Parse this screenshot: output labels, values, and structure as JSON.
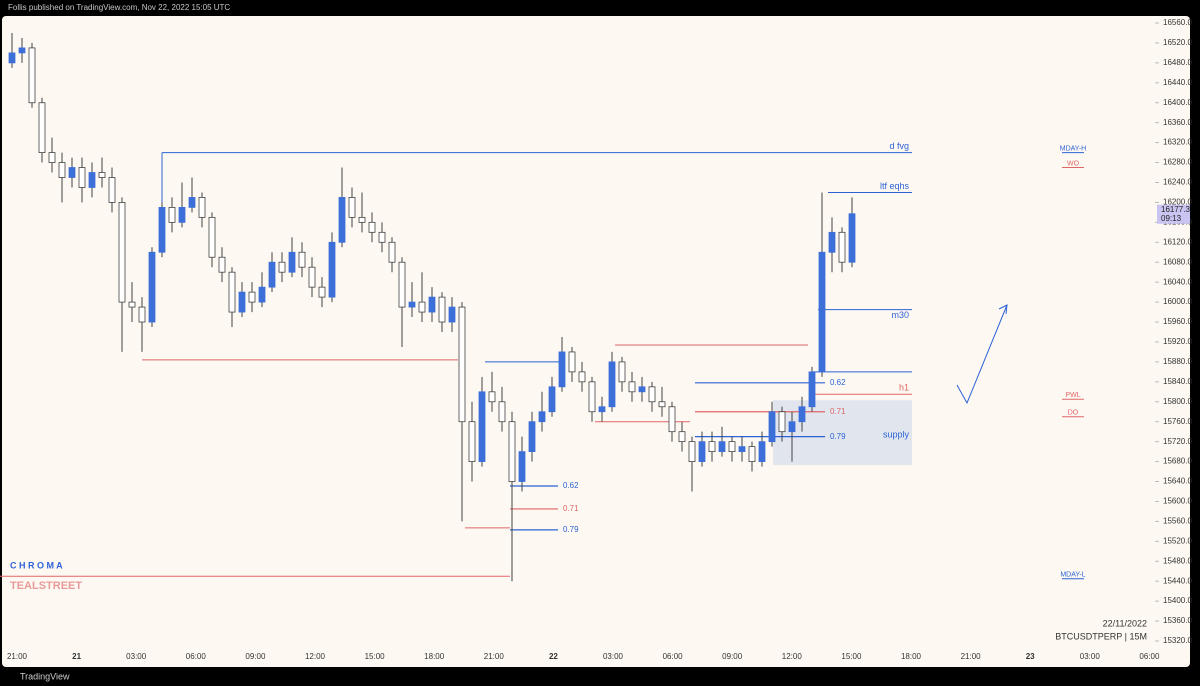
{
  "header": "Follis published on TradingView.com, Nov 22, 2022 15:05 UTC",
  "footer": "TradingView",
  "chart_data": {
    "type": "candlestick",
    "symbol": "BTCUSDTPERP | 15M",
    "date": "22/11/2022",
    "watermark_top": "C H R O M A",
    "watermark_bottom": "TEALSTREET",
    "up_color": "#3d6fd9",
    "down_color": "#ffffff",
    "candles": [
      [
        16480,
        16540,
        16470,
        16500
      ],
      [
        16500,
        16530,
        16480,
        16510
      ],
      [
        16510,
        16520,
        16390,
        16400
      ],
      [
        16400,
        16410,
        16280,
        16300
      ],
      [
        16300,
        16330,
        16260,
        16280
      ],
      [
        16280,
        16300,
        16200,
        16250
      ],
      [
        16250,
        16290,
        16230,
        16270
      ],
      [
        16270,
        16290,
        16200,
        16230
      ],
      [
        16230,
        16280,
        16210,
        16260
      ],
      [
        16260,
        16290,
        16230,
        16250
      ],
      [
        16250,
        16270,
        16180,
        16200
      ],
      [
        16200,
        16210,
        15900,
        16000
      ],
      [
        16000,
        16040,
        15960,
        15990
      ],
      [
        15990,
        16010,
        15900,
        15960
      ],
      [
        15960,
        16110,
        15950,
        16100
      ],
      [
        16100,
        16200,
        16090,
        16190
      ],
      [
        16190,
        16210,
        16140,
        16160
      ],
      [
        16160,
        16240,
        16150,
        16190
      ],
      [
        16190,
        16250,
        16180,
        16210
      ],
      [
        16210,
        16220,
        16150,
        16170
      ],
      [
        16170,
        16180,
        16070,
        16090
      ],
      [
        16090,
        16110,
        16040,
        16060
      ],
      [
        16060,
        16070,
        15950,
        15980
      ],
      [
        15980,
        16040,
        15970,
        16020
      ],
      [
        16020,
        16040,
        15980,
        16000
      ],
      [
        16000,
        16060,
        15990,
        16030
      ],
      [
        16030,
        16100,
        16020,
        16080
      ],
      [
        16080,
        16100,
        16040,
        16060
      ],
      [
        16060,
        16130,
        16050,
        16100
      ],
      [
        16100,
        16120,
        16050,
        16070
      ],
      [
        16070,
        16090,
        16010,
        16030
      ],
      [
        16030,
        16050,
        15990,
        16010
      ],
      [
        16010,
        16140,
        16000,
        16120
      ],
      [
        16120,
        16270,
        16110,
        16210
      ],
      [
        16210,
        16230,
        16150,
        16170
      ],
      [
        16170,
        16220,
        16140,
        16160
      ],
      [
        16160,
        16180,
        16120,
        16140
      ],
      [
        16140,
        16160,
        16100,
        16120
      ],
      [
        16120,
        16130,
        16060,
        16080
      ],
      [
        16080,
        16090,
        15910,
        15990
      ],
      [
        15990,
        16040,
        15970,
        16000
      ],
      [
        16000,
        16060,
        15960,
        15980
      ],
      [
        15980,
        16030,
        15960,
        16010
      ],
      [
        16010,
        16020,
        15940,
        15960
      ],
      [
        15960,
        16010,
        15940,
        15990
      ],
      [
        15990,
        16000,
        15560,
        15760
      ],
      [
        15760,
        15800,
        15640,
        15680
      ],
      [
        15680,
        15850,
        15670,
        15820
      ],
      [
        15820,
        15860,
        15780,
        15800
      ],
      [
        15800,
        15830,
        15740,
        15760
      ],
      [
        15760,
        15780,
        15440,
        15640
      ],
      [
        15640,
        15730,
        15620,
        15700
      ],
      [
        15700,
        15780,
        15680,
        15760
      ],
      [
        15760,
        15820,
        15740,
        15780
      ],
      [
        15780,
        15850,
        15770,
        15830
      ],
      [
        15830,
        15930,
        15820,
        15900
      ],
      [
        15900,
        15910,
        15840,
        15860
      ],
      [
        15860,
        15880,
        15820,
        15840
      ],
      [
        15840,
        15850,
        15760,
        15780
      ],
      [
        15780,
        15810,
        15760,
        15790
      ],
      [
        15790,
        15900,
        15780,
        15880
      ],
      [
        15880,
        15890,
        15820,
        15840
      ],
      [
        15840,
        15860,
        15800,
        15820
      ],
      [
        15820,
        15850,
        15800,
        15830
      ],
      [
        15830,
        15840,
        15780,
        15800
      ],
      [
        15800,
        15830,
        15770,
        15790
      ],
      [
        15790,
        15800,
        15720,
        15740
      ],
      [
        15740,
        15760,
        15700,
        15720
      ],
      [
        15720,
        15730,
        15620,
        15680
      ],
      [
        15680,
        15740,
        15670,
        15720
      ],
      [
        15720,
        15740,
        15680,
        15700
      ],
      [
        15700,
        15750,
        15690,
        15720
      ],
      [
        15720,
        15730,
        15680,
        15700
      ],
      [
        15700,
        15730,
        15680,
        15710
      ],
      [
        15710,
        15720,
        15660,
        15680
      ],
      [
        15680,
        15740,
        15670,
        15720
      ],
      [
        15720,
        15800,
        15710,
        15780
      ],
      [
        15780,
        15790,
        15720,
        15740
      ],
      [
        15740,
        15780,
        15680,
        15760
      ],
      [
        15760,
        15810,
        15740,
        15790
      ],
      [
        15790,
        15870,
        15780,
        15860
      ],
      [
        15860,
        16220,
        15850,
        16100
      ],
      [
        16100,
        16170,
        16060,
        16140
      ],
      [
        16140,
        16150,
        16060,
        16080
      ],
      [
        16080,
        16210,
        16070,
        16177.3
      ]
    ],
    "last_price": 16177.3,
    "countdown": "09:13",
    "ylim": [
      15320,
      16560
    ],
    "yticks": [
      {
        "value": 15320,
        "label": "15320.0"
      },
      {
        "value": 15360,
        "label": "15360.0"
      },
      {
        "value": 15400,
        "label": "15400.0"
      },
      {
        "value": 15440,
        "label": "15440.0"
      },
      {
        "value": 15480,
        "label": "15480.0"
      },
      {
        "value": 15520,
        "label": "15520.0"
      },
      {
        "value": 15560,
        "label": "15560.0"
      },
      {
        "value": 15600,
        "label": "15600.0"
      },
      {
        "value": 15640,
        "label": "15640.0"
      },
      {
        "value": 15680,
        "label": "15680.0"
      },
      {
        "value": 15720,
        "label": "15720.0"
      },
      {
        "value": 15760,
        "label": "15760.0"
      },
      {
        "value": 15800,
        "label": "15800.0"
      },
      {
        "value": 15840,
        "label": "15840.0"
      },
      {
        "value": 15880,
        "label": "15880.0"
      },
      {
        "value": 15920,
        "label": "15920.0"
      },
      {
        "value": 15960,
        "label": "15960.0"
      },
      {
        "value": 16000,
        "label": "16000.0"
      },
      {
        "value": 16040,
        "label": "16040.0"
      },
      {
        "value": 16080,
        "label": "16080.0"
      },
      {
        "value": 16120,
        "label": "16120.0"
      },
      {
        "value": 16160,
        "label": "16160.0"
      },
      {
        "value": 16200,
        "label": "16200.0"
      },
      {
        "value": 16240,
        "label": "16240.0"
      },
      {
        "value": 16280,
        "label": "16280.0"
      },
      {
        "value": 16320,
        "label": "16320.0"
      },
      {
        "value": 16360,
        "label": "16360.0"
      },
      {
        "value": 16400,
        "label": "16400.0"
      },
      {
        "value": 16440,
        "label": "16440.0"
      },
      {
        "value": 16480,
        "label": "16480.0"
      },
      {
        "value": 16520,
        "label": "16520.0"
      },
      {
        "value": 16560,
        "label": "16560.0"
      }
    ],
    "time_labels": [
      "21:00",
      "21",
      "03:00",
      "06:00",
      "09:00",
      "12:00",
      "15:00",
      "18:00",
      "21:00",
      "22",
      "03:00",
      "06:00",
      "09:00",
      "12:00",
      "15:00",
      "18:00",
      "21:00",
      "23",
      "03:00",
      "06:00"
    ],
    "levels": [
      {
        "label": "d fvg",
        "price": 16300,
        "color": "#2d62d6"
      },
      {
        "label": "ltf eqhs",
        "price": 16220,
        "color": "#2d62d6"
      },
      {
        "label": "m30",
        "price": 15985,
        "color": "#2d62d6"
      },
      {
        "label": "h1",
        "price": 15815,
        "color": "#e06666"
      }
    ],
    "supply": {
      "label": "supply",
      "top": 15803,
      "bottom": 15673
    },
    "fib_ratios": [
      0.62,
      0.71,
      0.79
    ],
    "fib_sets": [
      [
        15631,
        15585,
        15543
      ],
      [
        15838,
        15780,
        15730
      ]
    ],
    "lines": [
      {
        "price": 15884,
        "color": "#e06666"
      },
      {
        "price": 15547,
        "color": "#e06666"
      },
      {
        "price": 15450,
        "color": "#e06666"
      },
      {
        "price": 15914,
        "color": "#e06666"
      },
      {
        "price": 15880,
        "color": "#2d62d6"
      },
      {
        "price": 15760,
        "color": "#e06666"
      },
      {
        "price": 15860,
        "color": "#2d62d6"
      }
    ],
    "markers": [
      {
        "label": "MDAY-H",
        "price": 16300,
        "color": "#2d62d6"
      },
      {
        "label": "WO",
        "price": 16270,
        "color": "#e06666"
      },
      {
        "label": "PWL",
        "price": 15805,
        "color": "#e06666"
      },
      {
        "label": "DO",
        "price": 15770,
        "color": "#e06666"
      },
      {
        "label": "MDAY-L",
        "price": 15445,
        "color": "#2d62d6"
      }
    ]
  }
}
